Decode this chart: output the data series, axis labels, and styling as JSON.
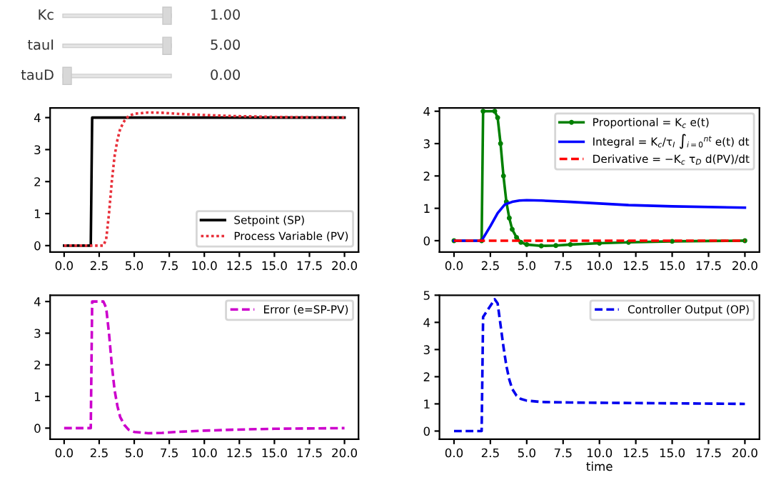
{
  "chart_data": [
    {
      "type": "other",
      "annotations": [
        "Kc",
        "1.00",
        "tauI",
        "5.00",
        "tauD",
        "0.00"
      ]
    },
    {
      "type": "line",
      "xlim": [
        -1,
        21
      ],
      "ylim": [
        -0.2,
        4.3
      ],
      "xticks": [
        {
          "value": 0,
          "label": "0.0"
        },
        {
          "value": 2.5,
          "label": "2.5"
        },
        {
          "value": 5,
          "label": "5.0"
        },
        {
          "value": 7.5,
          "label": "7.5"
        },
        {
          "value": 10,
          "label": "10.0"
        },
        {
          "value": 12.5,
          "label": "12.5"
        },
        {
          "value": 15,
          "label": "15.0"
        },
        {
          "value": 17.5,
          "label": "17.5"
        },
        {
          "value": 20,
          "label": "20.0"
        }
      ],
      "yticks": [
        0,
        1,
        2,
        3,
        4
      ],
      "legend": "bottom right",
      "series": [
        {
          "name": "Setpoint (SP)",
          "color": "#000000",
          "line_style": "solid",
          "x": [
            0,
            1.9,
            2.0,
            20
          ],
          "values": [
            0,
            0,
            4,
            4
          ]
        },
        {
          "name": "Process Variable (PV)",
          "color": "#e8303a",
          "line_style": "dotted",
          "x": [
            0,
            2.8,
            3.0,
            3.2,
            3.4,
            3.6,
            3.8,
            4.0,
            4.3,
            4.6,
            5,
            6,
            7,
            8,
            10,
            12,
            15,
            20
          ],
          "values": [
            0,
            0,
            0.2,
            1.0,
            2.0,
            2.8,
            3.3,
            3.65,
            3.9,
            4.05,
            4.12,
            4.16,
            4.15,
            4.12,
            4.08,
            4.05,
            4.02,
            4.0
          ]
        }
      ]
    },
    {
      "type": "line",
      "xlim": [
        -1,
        21
      ],
      "ylim": [
        -0.35,
        4.1
      ],
      "xticks": [
        {
          "value": 0,
          "label": "0.0"
        },
        {
          "value": 2.5,
          "label": "2.5"
        },
        {
          "value": 5,
          "label": "5.0"
        },
        {
          "value": 7.5,
          "label": "7.5"
        },
        {
          "value": 10,
          "label": "10.0"
        },
        {
          "value": 12.5,
          "label": "12.5"
        },
        {
          "value": 15,
          "label": "15.0"
        },
        {
          "value": 17.5,
          "label": "17.5"
        },
        {
          "value": 20,
          "label": "20.0"
        }
      ],
      "yticks": [
        0,
        1,
        2,
        3,
        4
      ],
      "legend": "top right",
      "series": [
        {
          "name": "Proportional = K$_{c}$ e(t)",
          "color": "#008000",
          "line_style": "solid",
          "marker": "circle",
          "x": [
            0,
            1.9,
            2.0,
            2.8,
            3.0,
            3.2,
            3.4,
            3.6,
            3.8,
            4.0,
            4.3,
            4.6,
            5,
            6,
            7,
            8,
            10,
            12,
            15,
            20
          ],
          "values": [
            0,
            0,
            4,
            4,
            3.8,
            3.0,
            2.0,
            1.2,
            0.7,
            0.35,
            0.1,
            -0.05,
            -0.12,
            -0.16,
            -0.15,
            -0.12,
            -0.08,
            -0.05,
            -0.02,
            0
          ]
        },
        {
          "name": "Integral = K$_{c}$/τ$_{I}$ ∫$_{i=0}$$^{nt}$ e(t) dt",
          "color": "#0000ff",
          "line_style": "solid",
          "x": [
            0,
            1.9,
            2.5,
            3.0,
            3.5,
            4.0,
            4.5,
            5,
            6,
            8,
            10,
            12,
            15,
            20
          ],
          "values": [
            0,
            0,
            0.45,
            0.85,
            1.12,
            1.2,
            1.24,
            1.25,
            1.24,
            1.2,
            1.15,
            1.1,
            1.06,
            1.02
          ]
        },
        {
          "name": "Derivative = −K$_{c}$ τ$_{D}$ d(PV)/dt",
          "color": "#ff0000",
          "line_style": "dashed",
          "x": [
            0,
            20
          ],
          "values": [
            0,
            0
          ]
        }
      ]
    },
    {
      "type": "line",
      "xlim": [
        -1,
        21
      ],
      "ylim": [
        -0.35,
        4.2
      ],
      "xticks": [
        {
          "value": 0,
          "label": "0.0"
        },
        {
          "value": 2.5,
          "label": "2.5"
        },
        {
          "value": 5,
          "label": "5.0"
        },
        {
          "value": 7.5,
          "label": "7.5"
        },
        {
          "value": 10,
          "label": "10.0"
        },
        {
          "value": 12.5,
          "label": "12.5"
        },
        {
          "value": 15,
          "label": "15.0"
        },
        {
          "value": 17.5,
          "label": "17.5"
        },
        {
          "value": 20,
          "label": "20.0"
        }
      ],
      "yticks": [
        0,
        1,
        2,
        3,
        4
      ],
      "legend": "top right",
      "series": [
        {
          "name": "Error (e=SP-PV)",
          "color": "#cc00cc",
          "line_style": "dashed",
          "x": [
            0,
            1.9,
            2.0,
            2.8,
            3.0,
            3.2,
            3.4,
            3.6,
            3.8,
            4.0,
            4.3,
            4.6,
            5,
            6,
            7,
            8,
            10,
            12,
            15,
            20
          ],
          "values": [
            0,
            0,
            4,
            4,
            3.8,
            3.0,
            2.0,
            1.2,
            0.7,
            0.35,
            0.1,
            -0.05,
            -0.12,
            -0.16,
            -0.15,
            -0.12,
            -0.08,
            -0.05,
            -0.02,
            0
          ]
        }
      ]
    },
    {
      "type": "line",
      "xlabel": "time",
      "xlim": [
        -1,
        21
      ],
      "ylim": [
        -0.3,
        5.0
      ],
      "xticks": [
        {
          "value": 0,
          "label": "0.0"
        },
        {
          "value": 2.5,
          "label": "2.5"
        },
        {
          "value": 5,
          "label": "5.0"
        },
        {
          "value": 7.5,
          "label": "7.5"
        },
        {
          "value": 10,
          "label": "10.0"
        },
        {
          "value": 12.5,
          "label": "12.5"
        },
        {
          "value": 15,
          "label": "15.0"
        },
        {
          "value": 17.5,
          "label": "17.5"
        },
        {
          "value": 20,
          "label": "20.0"
        }
      ],
      "yticks": [
        0,
        1,
        2,
        3,
        4,
        5
      ],
      "legend": "top right",
      "series": [
        {
          "name": "Controller Output (OP)",
          "color": "#0000ee",
          "line_style": "dashed",
          "x": [
            0,
            1.9,
            2.0,
            2.8,
            3.0,
            3.2,
            3.4,
            3.6,
            3.8,
            4.0,
            4.3,
            4.6,
            5,
            6,
            8,
            10,
            20
          ],
          "values": [
            0,
            0,
            4.2,
            4.85,
            4.7,
            3.9,
            3.1,
            2.4,
            1.9,
            1.55,
            1.3,
            1.18,
            1.12,
            1.07,
            1.05,
            1.04,
            1.0
          ]
        }
      ]
    }
  ]
}
